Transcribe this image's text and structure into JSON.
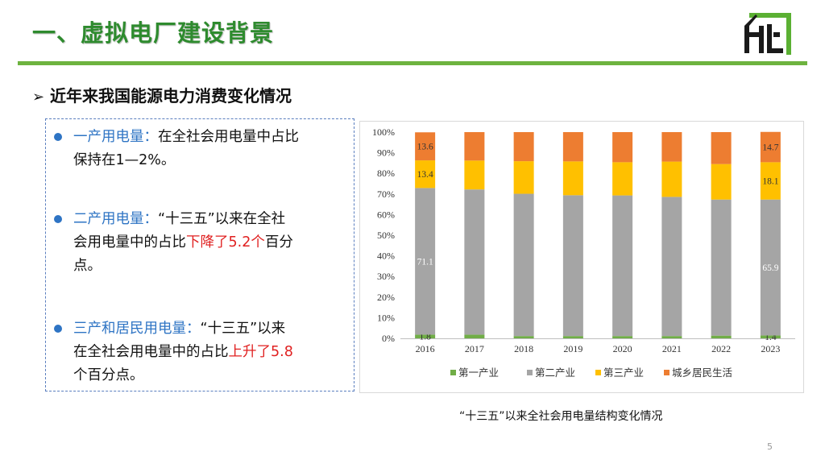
{
  "header": {
    "title": "一、虚拟电厂建设背景",
    "section_heading": "近年来我国能源电力消费变化情况",
    "arrow_glyph": "➢",
    "accent_color": "#2e8b2e"
  },
  "bullets": [
    {
      "label": "一产用电量：",
      "parts": [
        "在全社会用电量中占比",
        "保持在1—2%。"
      ]
    },
    {
      "label": "二产用电量：",
      "parts": [
        "“十三五”以来在全社",
        "会用电量中的占比",
        "下降了5.2个",
        "百分",
        "点。"
      ]
    },
    {
      "label": "三产和居民用电量：",
      "parts": [
        "“十三五”以来",
        "在全社会用电量中的占比",
        "上升了5.8",
        "个百分点。"
      ]
    }
  ],
  "chart_data": {
    "type": "bar",
    "stacked": true,
    "percent": true,
    "categories": [
      "2016",
      "2017",
      "2018",
      "2019",
      "2020",
      "2021",
      "2022",
      "2023"
    ],
    "series": [
      {
        "name": "第一产业",
        "color": "#70ad47",
        "values": [
          1.8,
          1.8,
          1.1,
          1.1,
          1.1,
          1.1,
          1.3,
          1.4
        ]
      },
      {
        "name": "第二产业",
        "color": "#a5a5a5",
        "values": [
          71.1,
          70.4,
          69.0,
          68.3,
          68.2,
          67.5,
          66.0,
          65.9
        ]
      },
      {
        "name": "第三产业",
        "color": "#ffc000",
        "values": [
          13.4,
          14.0,
          15.8,
          16.4,
          16.1,
          17.1,
          17.2,
          18.1
        ]
      },
      {
        "name": "城乡居民生活",
        "color": "#ed7d31",
        "values": [
          13.6,
          13.8,
          14.1,
          14.2,
          14.6,
          14.3,
          15.5,
          14.7
        ]
      }
    ],
    "data_labels": [
      {
        "category": "2016",
        "series": "第一产业",
        "text": "1.8"
      },
      {
        "category": "2016",
        "series": "第二产业",
        "text": "71.1"
      },
      {
        "category": "2016",
        "series": "第三产业",
        "text": "13.4"
      },
      {
        "category": "2016",
        "series": "城乡居民生活",
        "text": "13.6"
      },
      {
        "category": "2023",
        "series": "第一产业",
        "text": "1.4"
      },
      {
        "category": "2023",
        "series": "第二产业",
        "text": "65.9"
      },
      {
        "category": "2023",
        "series": "第三产业",
        "text": "18.1"
      },
      {
        "category": "2023",
        "series": "城乡居民生活",
        "text": "14.7"
      }
    ],
    "y_ticks": [
      "0%",
      "10%",
      "20%",
      "30%",
      "40%",
      "50%",
      "60%",
      "70%",
      "80%",
      "90%",
      "100%"
    ],
    "ylim": [
      0,
      100
    ],
    "grid": false,
    "legend_position": "bottom",
    "caption": "“十三五”以来全社会用电量结构变化情况"
  },
  "page_number": "5"
}
